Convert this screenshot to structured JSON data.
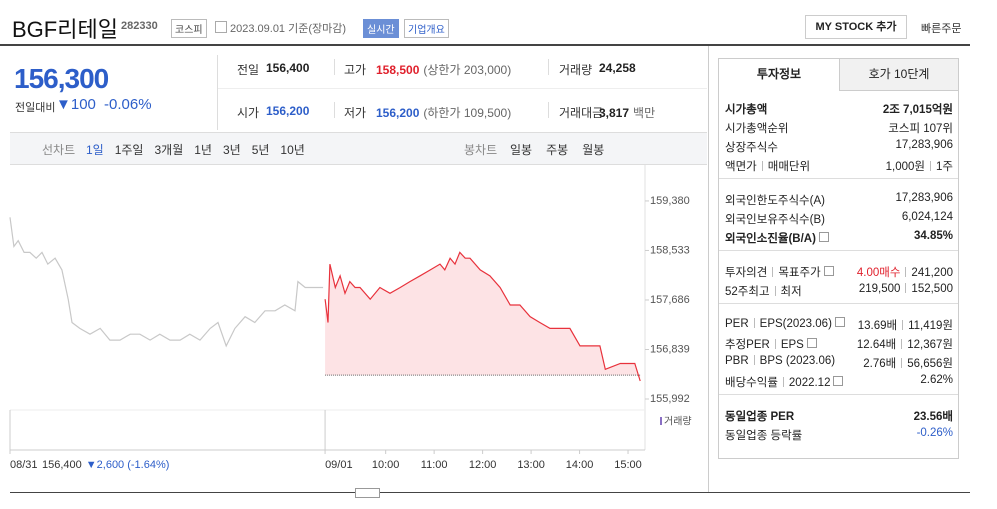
{
  "header": {
    "name": "BGF리테일",
    "code": "282330",
    "market": "코스피",
    "date": "2023.09.01",
    "basis": "기준(장마감)",
    "realtime": "실시간",
    "overview": "기업개요",
    "my_stock": "MY STOCK 추가",
    "quick_order": "빠른주문"
  },
  "price": {
    "current": "156,300",
    "change_label": "전일대비",
    "change": "100",
    "change_pct": "-0.06%"
  },
  "quote": [
    [
      {
        "label": "전일",
        "value": "156,400"
      },
      {
        "label": "고가",
        "value": "158,500",
        "note": "(상한가 203,000)"
      },
      {
        "label": "거래량",
        "value": "24,258"
      }
    ],
    [
      {
        "label": "시가",
        "value": "156,200"
      },
      {
        "label": "저가",
        "value": "156,200",
        "note": "(하한가 109,500)"
      },
      {
        "label": "거래대금",
        "value": "3,817",
        "note": "백만"
      }
    ]
  ],
  "line_tabs": {
    "label": "선차트",
    "items": [
      "1일",
      "1주일",
      "3개월",
      "1년",
      "3년",
      "5년",
      "10년"
    ]
  },
  "candle_tabs": {
    "label": "봉차트",
    "items": [
      "일봉",
      "주봉",
      "월봉"
    ]
  },
  "chart_data": {
    "type": "line",
    "xlim": [
      0,
      13.1
    ],
    "xticks": [
      {
        "value": 0,
        "label": "08/31"
      },
      {
        "value": 6.5,
        "label": "09/01"
      },
      {
        "value": 7.75,
        "label": "10:00"
      },
      {
        "value": 8.75,
        "label": "11:00"
      },
      {
        "value": 9.75,
        "label": "12:00"
      },
      {
        "value": 10.75,
        "label": "13:00"
      },
      {
        "value": 11.75,
        "label": "14:00"
      },
      {
        "value": 12.75,
        "label": "15:00"
      }
    ],
    "ylim": [
      155804,
      159704
    ],
    "yticks": [
      {
        "value": 159380,
        "label": "159,380"
      },
      {
        "value": 158533,
        "label": "158,533"
      },
      {
        "value": 157686,
        "label": "157,686"
      },
      {
        "value": 156839,
        "label": "156,839"
      },
      {
        "value": 155992,
        "label": "155,992"
      }
    ],
    "baseline": 156400,
    "volume_label": "거래량",
    "prev_summary": {
      "close": "156,400",
      "change": "▼2,600 (-1.64%)"
    },
    "series": [
      {
        "color": "#c8c8c8",
        "fill": false,
        "x": [
          0,
          0.08,
          0.17,
          0.29,
          0.41,
          0.54,
          0.66,
          0.78,
          0.93,
          1.07,
          1.2,
          1.28,
          1.44,
          1.65,
          1.86,
          2.06,
          2.27,
          2.48,
          2.68,
          2.89,
          3.09,
          3.3,
          3.51,
          3.71,
          3.92,
          4.13,
          4.29,
          4.46,
          4.64,
          4.85,
          5.05,
          5.26,
          5.47,
          5.67,
          5.88,
          5.94,
          6.09,
          6.29,
          6.46
        ],
        "values": [
          159100,
          158600,
          158700,
          158500,
          158500,
          158400,
          158500,
          158300,
          158400,
          158200,
          157700,
          157300,
          157200,
          157100,
          157200,
          157000,
          157000,
          157100,
          157100,
          157000,
          157100,
          157000,
          157000,
          157100,
          157000,
          157200,
          157300,
          156900,
          157200,
          157400,
          157300,
          157500,
          157500,
          157600,
          157500,
          158000,
          157900,
          157900,
          157900
        ]
      },
      {
        "color": "#e8323c",
        "fill": true,
        "x": [
          6.5,
          6.56,
          6.6,
          6.71,
          6.81,
          6.91,
          7.01,
          7.12,
          7.22,
          7.43,
          7.63,
          7.84,
          8.05,
          8.25,
          8.46,
          8.67,
          8.87,
          8.97,
          9.08,
          9.18,
          9.28,
          9.39,
          9.49,
          9.7,
          9.9,
          10.11,
          10.32,
          10.52,
          10.73,
          10.93,
          11.14,
          11.35,
          11.55,
          11.76,
          11.97,
          12.17,
          12.28,
          12.59,
          12.89,
          13.0
        ],
        "values": [
          157700,
          157300,
          158300,
          157900,
          158100,
          157800,
          158000,
          157900,
          157900,
          157700,
          157900,
          157800,
          157900,
          158000,
          158100,
          158200,
          158300,
          158200,
          158400,
          158300,
          158500,
          158400,
          158400,
          158200,
          158100,
          157900,
          157600,
          157600,
          157400,
          157300,
          157200,
          157200,
          157200,
          156900,
          156900,
          156900,
          156500,
          156600,
          156600,
          156300
        ]
      }
    ]
  },
  "side": {
    "tabs": [
      "투자정보",
      "호가 10단계"
    ],
    "sections": [
      [
        {
          "label": [
            "시가총액"
          ],
          "value": [
            "2조 7,015억원"
          ],
          "bold": true
        },
        {
          "label": [
            "시가총액순위"
          ],
          "value": [
            "코스피 107위"
          ]
        },
        {
          "label": [
            "상장주식수"
          ],
          "value": [
            "17,283,906"
          ]
        },
        {
          "label": [
            "액면가",
            "매매단위"
          ],
          "value": [
            "1,000원",
            "1주"
          ]
        }
      ],
      [
        {
          "label": [
            "외국인한도주식수(A)"
          ],
          "value": [
            "17,283,906"
          ]
        },
        {
          "label": [
            "외국인보유주식수(B)"
          ],
          "value": [
            "6,024,124"
          ]
        },
        {
          "label": [
            "외국인소진율(B/A)"
          ],
          "value": [
            "34.85%"
          ],
          "bold": true,
          "help": true
        }
      ],
      [
        {
          "label": [
            "투자의견",
            "목표주가"
          ],
          "value": [
            "4.00매수",
            "241,200"
          ],
          "value_color": "#e0202c",
          "help": true
        },
        {
          "label": [
            "52주최고",
            "최저"
          ],
          "value": [
            "219,500",
            "152,500"
          ]
        }
      ],
      [
        {
          "label": [
            "PER",
            "EPS(2023.06)"
          ],
          "value": [
            "13.69배",
            "11,419원"
          ],
          "help": true
        },
        {
          "label": [
            "추정PER",
            "EPS"
          ],
          "value": [
            "12.64배",
            "12,367원"
          ],
          "help": true
        },
        {
          "label": [
            "PBR",
            "BPS (2023.06)"
          ],
          "value": [
            "2.76배",
            "56,656원"
          ]
        },
        {
          "label": [
            "배당수익률",
            "2022.12"
          ],
          "value": [
            "2.62%"
          ],
          "help": true
        }
      ],
      [
        {
          "label": [
            "동일업종 PER"
          ],
          "value": [
            "23.56배"
          ],
          "bold": true
        },
        {
          "label": [
            "동일업종 등락률"
          ],
          "value": [
            "-0.26%"
          ],
          "value_color": "#2d5ec9"
        }
      ]
    ]
  }
}
